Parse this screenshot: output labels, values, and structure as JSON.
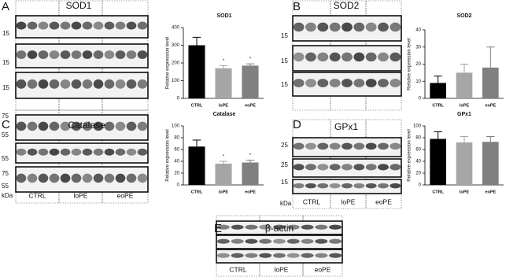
{
  "chart_data": [
    {
      "type": "bar",
      "title": "SOD1",
      "y_label": "Relative expression level",
      "categories": [
        "CTRL",
        "loPE",
        "eoPE"
      ],
      "values": [
        300,
        170,
        185
      ],
      "errors": [
        45,
        15,
        10
      ],
      "colors": [
        "#000000",
        "#a6a6a6",
        "#808080"
      ],
      "ylim": [
        0,
        400
      ],
      "yticks": [
        0,
        100,
        200,
        300,
        400
      ],
      "annotations": [
        {
          "category": "loPE",
          "text": "*"
        },
        {
          "category": "eoPE",
          "text": "*"
        }
      ]
    },
    {
      "type": "bar",
      "title": "SOD2",
      "y_label": "Relative expression level",
      "categories": [
        "CTRL",
        "loPE",
        "eoPE"
      ],
      "values": [
        9,
        15,
        18
      ],
      "errors": [
        4,
        5,
        12
      ],
      "colors": [
        "#000000",
        "#a6a6a6",
        "#808080"
      ],
      "ylim": [
        0,
        40
      ],
      "yticks": [
        0,
        10,
        20,
        30,
        40
      ]
    },
    {
      "type": "bar",
      "title": "Catalase",
      "y_label": "Relative expression level",
      "categories": [
        "CTRL",
        "loPE",
        "eoPE"
      ],
      "values": [
        65,
        36,
        38
      ],
      "errors": [
        11,
        4,
        4
      ],
      "colors": [
        "#000000",
        "#a6a6a6",
        "#808080"
      ],
      "ylim": [
        0,
        100
      ],
      "yticks": [
        0,
        20,
        40,
        60,
        80,
        100
      ],
      "annotations": [
        {
          "category": "loPE",
          "text": "*"
        },
        {
          "category": "eoPE",
          "text": "*"
        }
      ]
    },
    {
      "type": "bar",
      "title": "GPx1",
      "y_label": "Relative expression level",
      "categories": [
        "CTRL",
        "loPE",
        "eoPE"
      ],
      "values": [
        78,
        72,
        73
      ],
      "errors": [
        12,
        10,
        9
      ],
      "colors": [
        "#000000",
        "#a6a6a6",
        "#808080"
      ],
      "ylim": [
        0,
        100
      ],
      "yticks": [
        0,
        20,
        40,
        60,
        80,
        100
      ]
    }
  ],
  "blots": [
    {
      "letter": "A",
      "title": "SOD1",
      "markers": [
        "15",
        "15",
        "15"
      ]
    },
    {
      "letter": "C",
      "title": "Catalase",
      "markers": [
        "75",
        "55",
        "55",
        "75",
        "55"
      ],
      "lanes": [
        "CTRL",
        "loPE",
        "eoPE"
      ],
      "unit": "kDa"
    },
    {
      "letter": "B",
      "title": "SOD2",
      "markers": [
        "15",
        "15",
        "15"
      ]
    },
    {
      "letter": "D",
      "title": "GPx1",
      "markers": [
        "25",
        "25",
        "15"
      ],
      "lanes": [
        "CTRL",
        "loPE",
        "eoPE"
      ],
      "unit": "kDa"
    },
    {
      "letter": "E",
      "title": "β-actin",
      "lanes": [
        "CTRL",
        "loPE",
        "eoPE"
      ]
    }
  ]
}
